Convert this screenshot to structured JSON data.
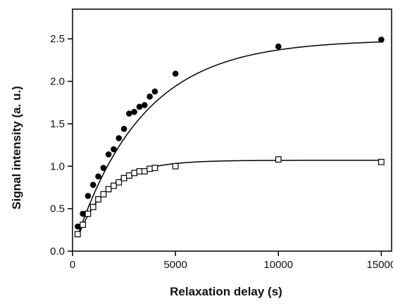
{
  "chart_data": {
    "type": "scatter",
    "title": "",
    "xlabel": "Relaxation delay  (s)",
    "ylabel": "Signal intensity  (a. u.)",
    "xlim": [
      0,
      15500
    ],
    "ylim": [
      0,
      2.85
    ],
    "xticks": [
      0,
      5000,
      10000,
      15000
    ],
    "xtick_labels": [
      "0",
      "5000",
      "10000",
      "15000"
    ],
    "yticks": [
      0.0,
      0.5,
      1.0,
      1.5,
      2.0,
      2.5
    ],
    "ytick_labels": [
      "0.0",
      "0.5",
      "1.0",
      "1.5",
      "2.0",
      "2.5"
    ],
    "grid": false,
    "series": [
      {
        "marker": "filled-circle",
        "color": "#000000",
        "x": [
          250,
          500,
          750,
          1000,
          1250,
          1500,
          1750,
          2000,
          2250,
          2500,
          2750,
          3000,
          3250,
          3500,
          3750,
          4000,
          5000,
          10000,
          15000
        ],
        "y": [
          0.29,
          0.44,
          0.65,
          0.78,
          0.88,
          0.98,
          1.14,
          1.2,
          1.33,
          1.44,
          1.62,
          1.64,
          1.7,
          1.72,
          1.82,
          1.88,
          2.09,
          2.41,
          2.49
        ],
        "fit": {
          "model": "A*(1-exp(-x/T1))",
          "A": 2.49,
          "T1": 3300
        }
      },
      {
        "marker": "open-square",
        "color": "#000000",
        "x": [
          250,
          500,
          750,
          1000,
          1250,
          1500,
          1750,
          2000,
          2250,
          2500,
          2750,
          3000,
          3250,
          3500,
          3750,
          4000,
          5000,
          10000,
          15000
        ],
        "y": [
          0.2,
          0.31,
          0.44,
          0.52,
          0.61,
          0.67,
          0.73,
          0.77,
          0.81,
          0.86,
          0.89,
          0.92,
          0.94,
          0.94,
          0.97,
          0.98,
          1.0,
          1.08,
          1.05
        ],
        "fit": {
          "model": "A*(1-exp(-x/T1))",
          "A": 1.07,
          "T1": 1500
        }
      }
    ]
  }
}
